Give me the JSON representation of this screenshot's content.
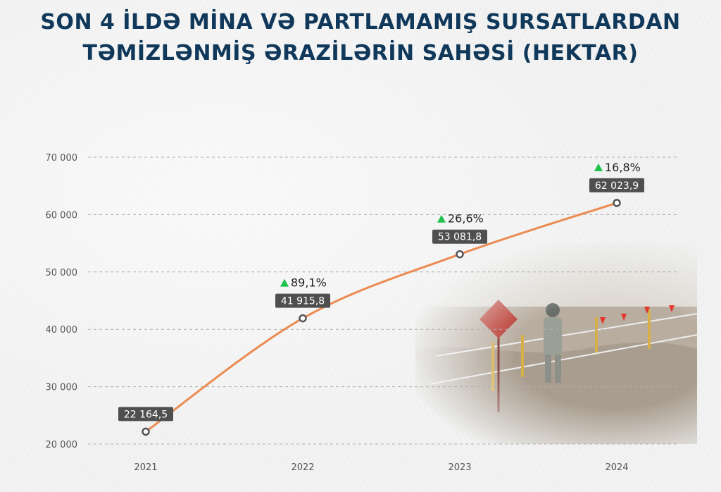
{
  "title_line1": "SON 4 İLDƏ MİNA VƏ PARTLAMAMIŞ SURSATLARDAN",
  "title_line2": "TƏMİZLƏNMİŞ ƏRAZİLƏRİN SAHƏSİ (HEKTAR)",
  "colors": {
    "title": "#10385a",
    "line": "#ec8a51",
    "label_box": "#4f4f4f",
    "up_arrow": "#1ec24a",
    "grid": "#b0b0b0"
  },
  "chart_data": {
    "type": "line",
    "title": "SON 4 İLDƏ MİNA VƏ PARTLAMAMIŞ SURSATLARDAN TƏMİZLƏNMİŞ ƏRAZİLƏRİN SAHƏSİ (HEKTAR)",
    "categories": [
      "2021",
      "2022",
      "2023",
      "2024"
    ],
    "values": [
      22164.5,
      41915.8,
      53081.8,
      62023.9
    ],
    "value_labels": [
      "22 164,5",
      "41 915,8",
      "53 081,8",
      "62 023,9"
    ],
    "growth_labels": [
      "",
      "89,1%",
      "26,6%",
      "16,8%"
    ],
    "ylim": [
      20000,
      70000
    ],
    "yticks": [
      20000,
      30000,
      40000,
      50000,
      60000,
      70000
    ],
    "ytick_labels": [
      "20 000",
      "30 000",
      "40 000",
      "50 000",
      "60 000",
      "70 000"
    ],
    "grid": true,
    "grid_style": "dashed"
  }
}
